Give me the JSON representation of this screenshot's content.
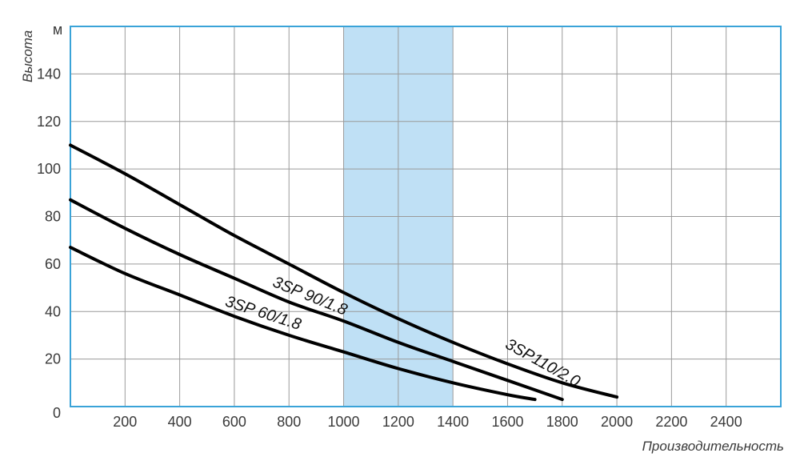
{
  "chart_data": {
    "type": "line",
    "xlabel": "Производительность",
    "ylabel": "Высота",
    "y_unit": "м",
    "xlim": [
      0,
      2600
    ],
    "ylim": [
      0,
      160
    ],
    "x_ticks": [
      0,
      200,
      400,
      600,
      800,
      1000,
      1200,
      1400,
      1600,
      1800,
      2000,
      2200,
      2400
    ],
    "x_tick_labels": [
      "200",
      "400",
      "600",
      "800",
      "1000",
      "1200",
      "1400",
      "1600",
      "1800",
      "2000",
      "2200",
      "2400"
    ],
    "y_ticks": [
      0,
      20,
      40,
      60,
      80,
      100,
      120,
      140
    ],
    "y_tick_labels": [
      "0",
      "20",
      "40",
      "60",
      "80",
      "100",
      "120",
      "140"
    ],
    "grid": true,
    "highlight_band": {
      "x_from": 1000,
      "x_to": 1400,
      "color": "#bfe0f5"
    },
    "colors": {
      "frame": "#3aa3d8",
      "grid": "#9a9a9a",
      "curve": "#000000",
      "band": "#bfe0f5"
    },
    "series": [
      {
        "name": "3SP110/2.0",
        "label_angle": 29,
        "x": [
          0,
          200,
          400,
          600,
          800,
          1000,
          1200,
          1400,
          1600,
          1800,
          2000
        ],
        "y": [
          110,
          98,
          85,
          72,
          60,
          48,
          37,
          27,
          18,
          10,
          4
        ]
      },
      {
        "name": "3SP 90/1.8",
        "label_angle": 22,
        "x": [
          0,
          200,
          400,
          600,
          800,
          1000,
          1200,
          1400,
          1600,
          1800
        ],
        "y": [
          87,
          75,
          64,
          54,
          44,
          36,
          27,
          19,
          11,
          3
        ]
      },
      {
        "name": "3SP 60/1.8",
        "label_angle": 18,
        "x": [
          0,
          200,
          400,
          600,
          800,
          1000,
          1200,
          1400,
          1600,
          1700
        ],
        "y": [
          67,
          56,
          47,
          38,
          30,
          23,
          16,
          10,
          5,
          3
        ]
      }
    ]
  }
}
